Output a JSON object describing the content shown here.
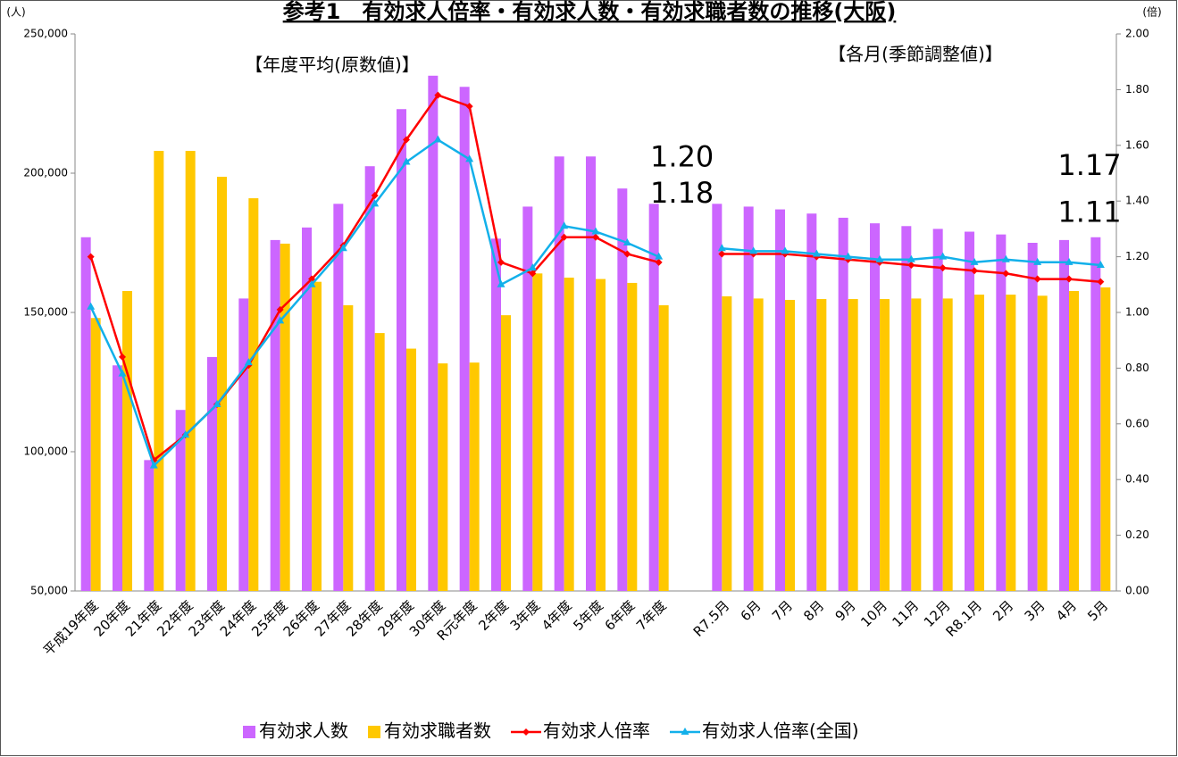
{
  "chart_data": {
    "type": "bar-line",
    "title": "参考1　有効求人倍率・有効求人数・有効求職者数の推移(大阪)",
    "y_unit": "(人)",
    "y2_unit": "(倍)",
    "annotations": [
      "【年度平均(原数値)】",
      "【各月(季節調整値)】"
    ],
    "categories": [
      "平成19年度",
      "20年度",
      "21年度",
      "22年度",
      "23年度",
      "24年度",
      "25年度",
      "26年度",
      "27年度",
      "28年度",
      "29年度",
      "30年度",
      "R元年度",
      "2年度",
      "3年度",
      "4年度",
      "5年度",
      "6年度",
      "7年度",
      null,
      "R7.5月",
      "6月",
      "7月",
      "8月",
      "9月",
      "10月",
      "11月",
      "12月",
      "R8.1月",
      "2月",
      "3月",
      "4月",
      "5月"
    ],
    "series": [
      {
        "name": "有効求人数",
        "type": "bar",
        "color": "#cc66ff",
        "values": [
          177000,
          131000,
          97000,
          115000,
          134000,
          155000,
          176000,
          180500,
          189000,
          202500,
          223000,
          235000,
          231000,
          176500,
          188000,
          206000,
          206000,
          194500,
          189000,
          null,
          189000,
          188000,
          187000,
          185500,
          184000,
          182000,
          181000,
          180000,
          179000,
          178000,
          175000,
          176000,
          177000
        ]
      },
      {
        "name": "有効求職者数",
        "type": "bar",
        "color": "#ffc800",
        "values": [
          148000,
          157700,
          208000,
          208000,
          198700,
          191000,
          174700,
          161000,
          152600,
          142600,
          137000,
          131700,
          132000,
          149000,
          164000,
          162500,
          162000,
          160600,
          152600,
          null,
          155800,
          155000,
          154500,
          154800,
          154800,
          154800,
          155000,
          155000,
          156400,
          156400,
          156000,
          157700,
          159000
        ]
      },
      {
        "name": "有効求人倍率",
        "type": "line",
        "axis": "y2",
        "color": "#ff0000",
        "label_color": "#ff0000",
        "marker": "diamond",
        "values": [
          1.2,
          0.84,
          0.47,
          0.56,
          0.67,
          0.81,
          1.01,
          1.12,
          1.24,
          1.42,
          1.62,
          1.78,
          1.74,
          1.18,
          1.14,
          1.27,
          1.27,
          1.21,
          1.18,
          null,
          1.21,
          1.21,
          1.21,
          1.2,
          1.19,
          1.18,
          1.17,
          1.16,
          1.15,
          1.14,
          1.12,
          1.12,
          1.11
        ],
        "value_labels": [
          null,
          null,
          null,
          null,
          null,
          null,
          null,
          null,
          null,
          null,
          null,
          null,
          null,
          null,
          null,
          null,
          null,
          null,
          "1.18",
          null,
          null,
          null,
          null,
          null,
          null,
          null,
          null,
          null,
          null,
          null,
          null,
          null,
          "1.11"
        ]
      },
      {
        "name": "有効求人倍率(全国)",
        "type": "line",
        "axis": "y2",
        "color": "#12b0ea",
        "label_color": "#2e75b6",
        "marker": "triangle",
        "values": [
          1.02,
          0.78,
          0.45,
          0.56,
          0.67,
          0.82,
          0.97,
          1.1,
          1.23,
          1.39,
          1.54,
          1.62,
          1.55,
          1.1,
          1.16,
          1.31,
          1.29,
          1.25,
          1.2,
          null,
          1.23,
          1.22,
          1.22,
          1.21,
          1.2,
          1.19,
          1.19,
          1.2,
          1.18,
          1.19,
          1.18,
          1.18,
          1.17
        ],
        "value_labels": [
          null,
          null,
          null,
          null,
          null,
          null,
          null,
          null,
          null,
          null,
          null,
          null,
          null,
          null,
          null,
          null,
          null,
          null,
          "1.20",
          null,
          null,
          null,
          null,
          null,
          null,
          null,
          null,
          null,
          null,
          null,
          null,
          null,
          "1.17"
        ]
      }
    ],
    "ylim": [
      50000,
      250000
    ],
    "yticks": [
      {
        "value": 50000,
        "label": "50,000"
      },
      {
        "value": 100000,
        "label": "100,000"
      },
      {
        "value": 150000,
        "label": "150,000"
      },
      {
        "value": 200000,
        "label": "200,000"
      },
      {
        "value": 250000,
        "label": "250,000"
      }
    ],
    "y2lim": [
      0,
      2
    ],
    "y2ticks": [
      {
        "value": 0,
        "label": "0.00"
      },
      {
        "value": 0.2,
        "label": "0.20"
      },
      {
        "value": 0.4,
        "label": "0.40"
      },
      {
        "value": 0.6,
        "label": "0.60"
      },
      {
        "value": 0.8,
        "label": "0.80"
      },
      {
        "value": 1,
        "label": "1.00"
      },
      {
        "value": 1.2,
        "label": "1.20"
      },
      {
        "value": 1.4,
        "label": "1.40"
      },
      {
        "value": 1.6,
        "label": "1.60"
      },
      {
        "value": 1.8,
        "label": "1.80"
      },
      {
        "value": 2,
        "label": "2.00"
      }
    ],
    "legend": "bottom",
    "grid": false
  }
}
